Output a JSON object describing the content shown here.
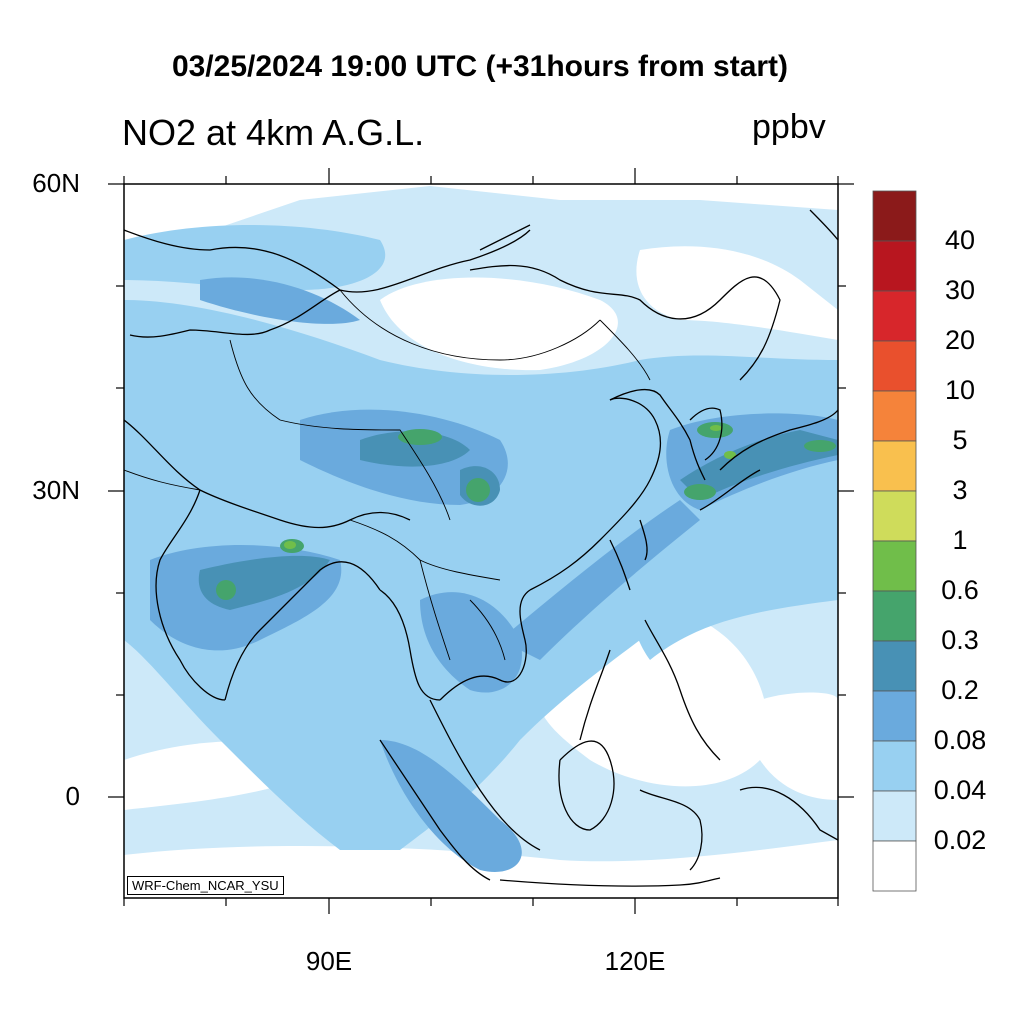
{
  "header": {
    "title": "03/25/2024 19:00 UTC (+31hours from start)",
    "variable": "NO2 at 4km A.G.L.",
    "units": "ppbv"
  },
  "map": {
    "lat_labels": [
      "60N",
      "30N",
      "0"
    ],
    "lon_labels": [
      "90E",
      "120E"
    ],
    "extent": {
      "lon_min": 70,
      "lon_max": 140,
      "lat_min": -10,
      "lat_max": 60
    },
    "credit": "WRF-Chem_NCAR_YSU"
  },
  "colorbar": {
    "levels": [
      "40",
      "30",
      "20",
      "10",
      "5",
      "3",
      "1",
      "0.6",
      "0.3",
      "0.2",
      "0.08",
      "0.04",
      "0.02"
    ],
    "colors": [
      "#8b1a1a",
      "#b8161f",
      "#d7262b",
      "#e9502d",
      "#f5833a",
      "#f9c04e",
      "#cfdc5b",
      "#70be4a",
      "#45a46c",
      "#4891b5",
      "#6aaadd",
      "#98d0f1",
      "#cde9f9",
      "#ffffff"
    ]
  }
}
